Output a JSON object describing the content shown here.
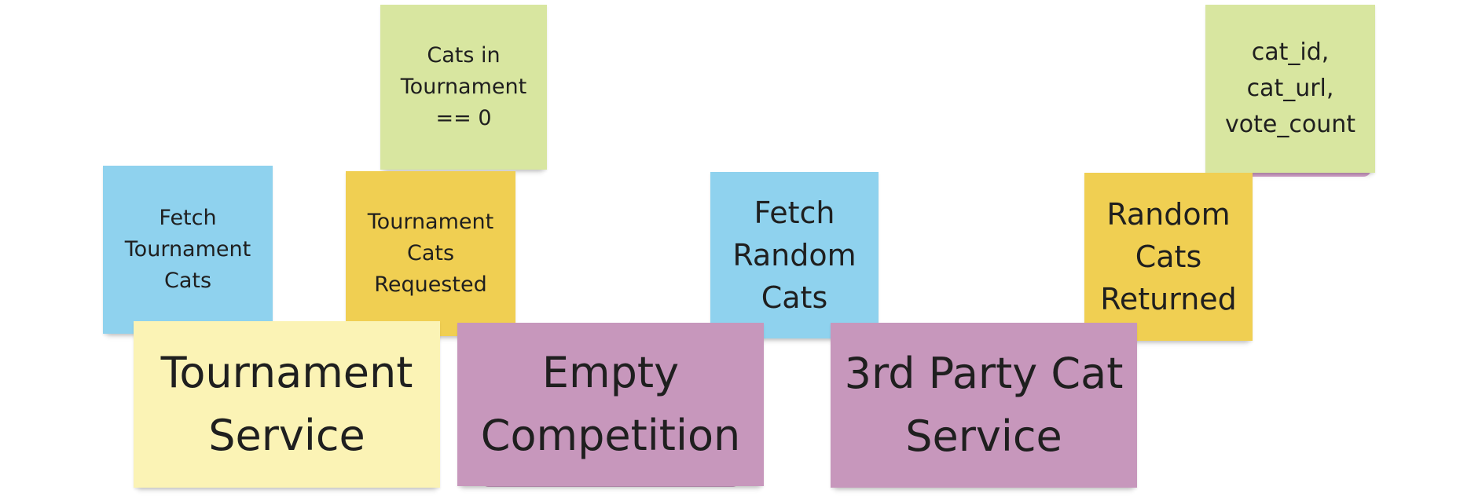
{
  "notes": {
    "fetch_tournament_cats": "Fetch Tournament Cats",
    "cats_in_tournament": "Cats in Tournament == 0",
    "tournament_cats_requested": "Tournament Cats Requested",
    "fetch_random_cats": "Fetch Random Cats",
    "random_cats_returned": "Random Cats Returned",
    "cat_fields": "cat_id, cat_url, vote_count",
    "tournament_service": "Tournament Service",
    "empty_competition": "Empty Competition",
    "third_party_cat_service": "3rd Party Cat Service"
  },
  "colors": {
    "command": "#8fd2ee",
    "event": "#f0cf52",
    "policy_data": "#d8e6a0",
    "system": "#fbf3b5",
    "aggregate": "#c797bc"
  }
}
